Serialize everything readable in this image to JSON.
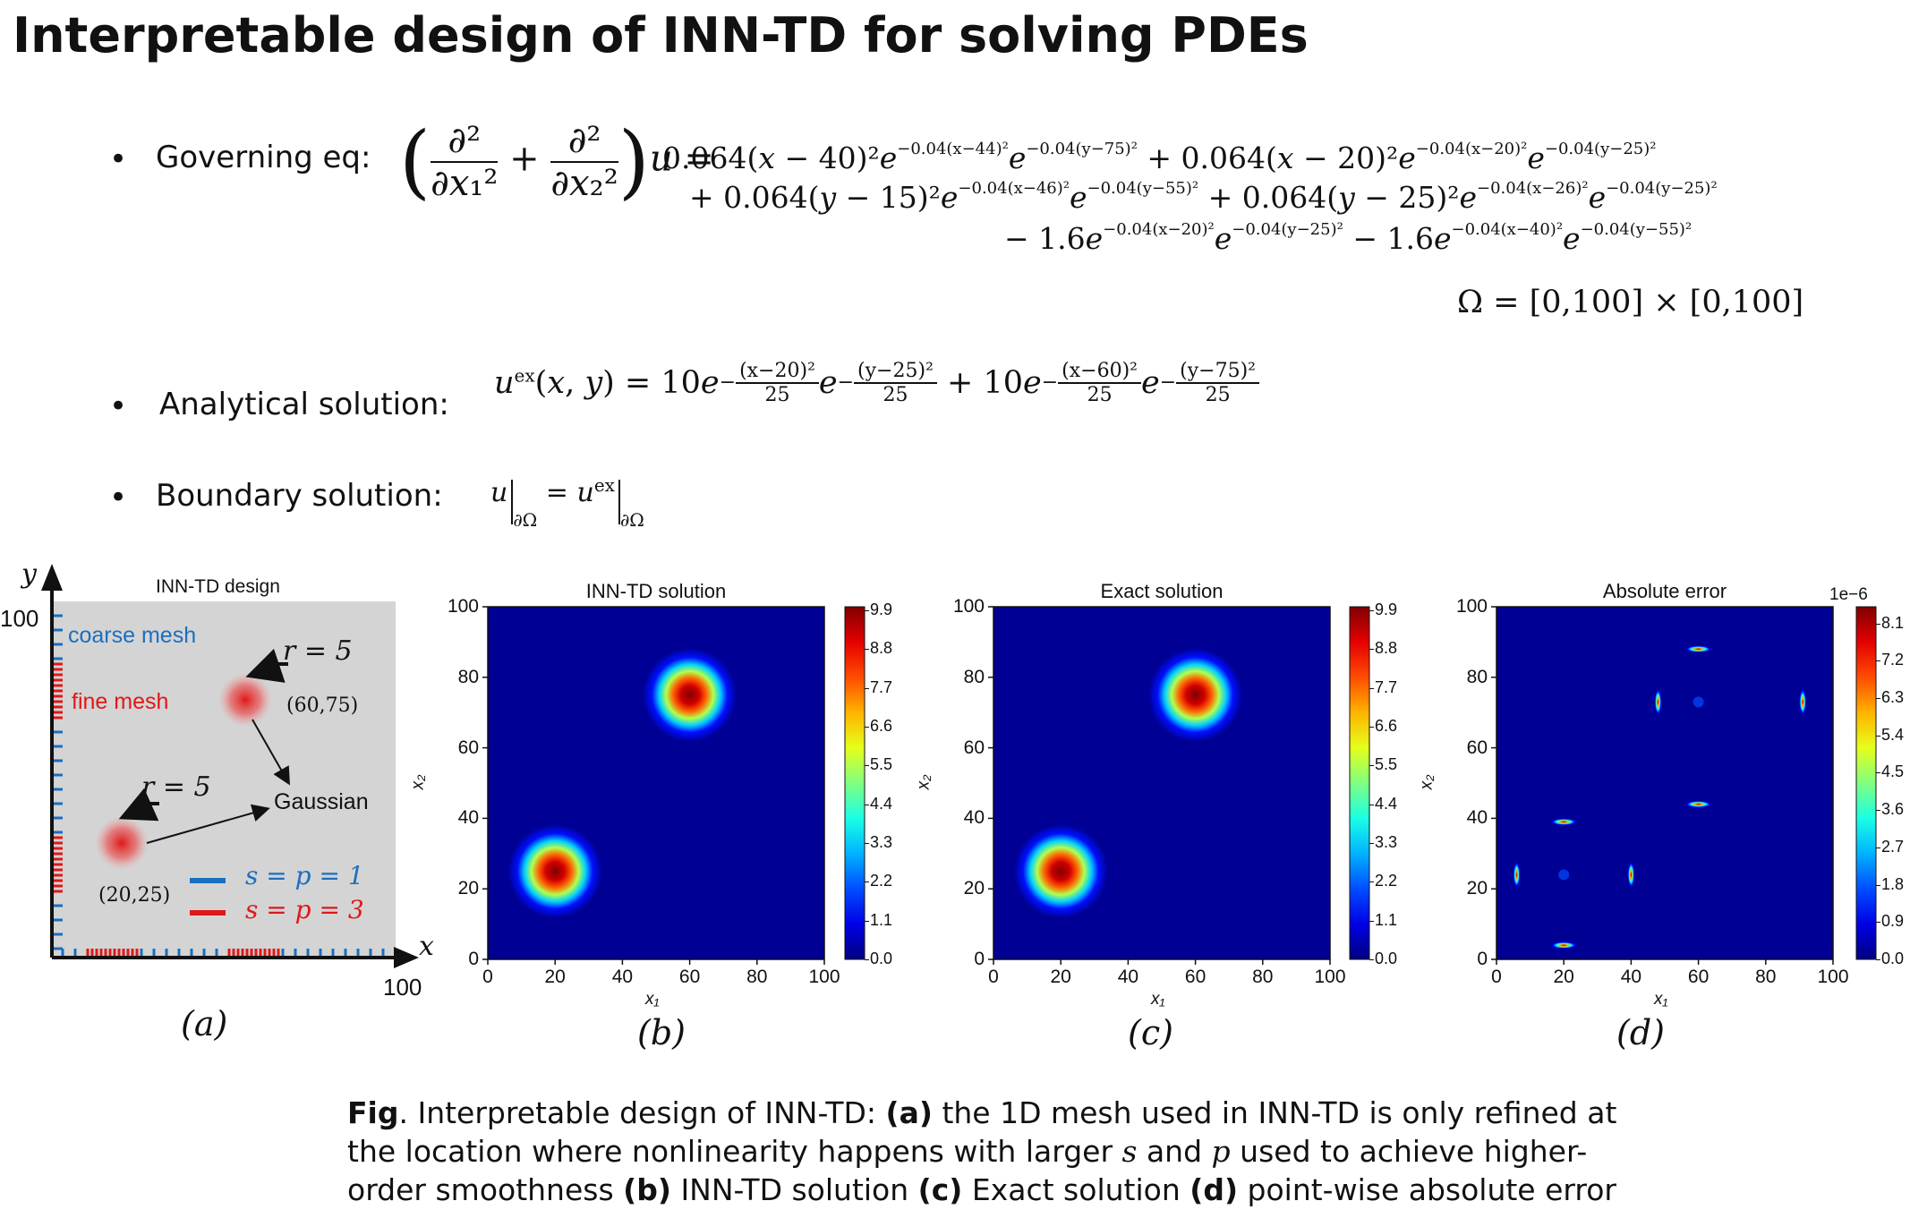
{
  "title": "Interpretable design of INN-TD for solving PDEs",
  "bullets": {
    "governing": "Governing eq:",
    "analytical": "Analytical solution:",
    "boundary": "Boundary solution:",
    "bullet_char": "•"
  },
  "equations": {
    "governing_line1": "0.064(x − 40)²e^{−0.04(x−44)²}e^{−0.04(y−75)²} + 0.064(x − 20)²e^{−0.04(x−20)²}e^{−0.04(y−25)²}",
    "governing_line2": "+ 0.064(y − 15)²e^{−0.04(x−46)²}e^{−0.04(y−55)²} + 0.064(y − 25)²e^{−0.04(x−26)²}e^{−0.04(y−25)²}",
    "governing_line3": "− 1.6e^{−0.04(x−20)²}e^{−0.04(y−25)²} − 1.6e^{−0.04(x−40)²}e^{−0.04(y−55)²}",
    "domain": "Ω = [0,100] × [0,100]",
    "analytical_lhs": "u^{ex}(x, y) = 10e",
    "boundary": "u|∂Ω = u^{ex}|∂Ω"
  },
  "design_panel": {
    "title": "INN-TD design",
    "coarse_label": "coarse mesh",
    "fine_label": "fine mesh",
    "r_label_1": "r = 5",
    "r_label_2": "r = 5",
    "point_1": "(60,75)",
    "point_2": "(20,25)",
    "gaussian_label": "Gaussian",
    "legend_blue": "s = p = 1",
    "legend_red": "s = p = 3",
    "axis_x": "x",
    "axis_y": "y",
    "tick_x": "100",
    "tick_y": "100",
    "label": "(a)",
    "colors": {
      "coarse": "#1a6fc0",
      "fine": "#e01818",
      "panel_bg": "#d4d4d4"
    }
  },
  "chart_data": [
    {
      "type": "heatmap",
      "title": "INN-TD solution",
      "xlabel": "x₁",
      "ylabel": "x₂",
      "xlim": [
        0,
        100
      ],
      "ylim": [
        0,
        100
      ],
      "xticks": [
        "0",
        "20",
        "40",
        "60",
        "80",
        "100"
      ],
      "yticks": [
        "0",
        "20",
        "40",
        "60",
        "80",
        "100"
      ],
      "colorbar_ticks": [
        "9.9",
        "8.8",
        "7.7",
        "6.6",
        "5.5",
        "4.4",
        "3.3",
        "2.2",
        "1.1",
        "0.0"
      ],
      "colorbar_range": [
        0,
        10
      ],
      "peaks": [
        {
          "x": 20,
          "y": 25,
          "value": 10
        },
        {
          "x": 60,
          "y": 75,
          "value": 10
        }
      ],
      "label": "(b)"
    },
    {
      "type": "heatmap",
      "title": "Exact solution",
      "xlabel": "x₁",
      "ylabel": "x₂",
      "xlim": [
        0,
        100
      ],
      "ylim": [
        0,
        100
      ],
      "xticks": [
        "0",
        "20",
        "40",
        "60",
        "80",
        "100"
      ],
      "yticks": [
        "0",
        "20",
        "40",
        "60",
        "80",
        "100"
      ],
      "colorbar_ticks": [
        "9.9",
        "8.8",
        "7.7",
        "6.6",
        "5.5",
        "4.4",
        "3.3",
        "2.2",
        "1.1",
        "0.0"
      ],
      "colorbar_range": [
        0,
        10
      ],
      "peaks": [
        {
          "x": 20,
          "y": 25,
          "value": 10
        },
        {
          "x": 60,
          "y": 75,
          "value": 10
        }
      ],
      "label": "(c)"
    },
    {
      "type": "heatmap",
      "title": "Absolute error",
      "xlabel": "x₁",
      "ylabel": "x₂",
      "xlim": [
        0,
        100
      ],
      "ylim": [
        0,
        100
      ],
      "xticks": [
        "0",
        "20",
        "40",
        "60",
        "80",
        "100"
      ],
      "yticks": [
        "0",
        "20",
        "40",
        "60",
        "80",
        "100"
      ],
      "colorbar_ticks": [
        "8.1",
        "7.2",
        "6.3",
        "5.4",
        "4.5",
        "3.6",
        "2.7",
        "1.8",
        "0.9",
        "0.0"
      ],
      "colorbar_multiplier": "1e−6",
      "colorbar_range": [
        0,
        8.5
      ],
      "hotspots": [
        {
          "x": 20,
          "y": 4,
          "orient": "h"
        },
        {
          "x": 20,
          "y": 39,
          "orient": "h"
        },
        {
          "x": 6,
          "y": 24,
          "orient": "v"
        },
        {
          "x": 40,
          "y": 24,
          "orient": "v"
        },
        {
          "x": 60,
          "y": 44,
          "orient": "h"
        },
        {
          "x": 60,
          "y": 88,
          "orient": "h"
        },
        {
          "x": 48,
          "y": 73,
          "orient": "v"
        },
        {
          "x": 91,
          "y": 73,
          "orient": "v"
        }
      ],
      "label": "(d)"
    }
  ],
  "caption": {
    "fig": "Fig",
    "dot": ".",
    "part1": " Interpretable design of INN-TD: ",
    "a": "(a)",
    "part2": " the 1D mesh used in INN-TD is only refined at the location where nonlinearity happens with larger ",
    "s": "s",
    "and": " and ",
    "p": "p",
    "part3": " used to achieve higher-order smoothness ",
    "b": "(b)",
    "part4": " INN-TD solution ",
    "c": "(c)",
    "part5": " Exact solution ",
    "d": "(d)",
    "part6": " point-wise absolute error"
  }
}
